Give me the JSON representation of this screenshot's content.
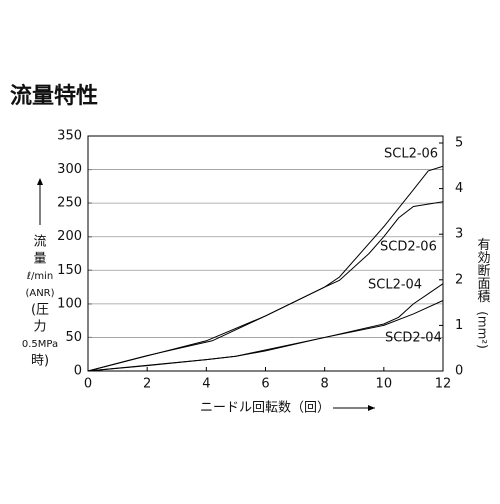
{
  "chart_data": {
    "type": "line",
    "title": "流量特性",
    "x_label": "ニードル回転数（回）",
    "y_label_lines": [
      "流",
      "量",
      "ℓ/min",
      "(ANR)",
      "(圧",
      "力",
      "0.5MPa",
      "時)"
    ],
    "y2_label": "有効断面積",
    "y2_unit": "(mm²)",
    "xlim": [
      0,
      12
    ],
    "xticks": [
      0,
      2,
      4,
      6,
      8,
      10,
      12
    ],
    "ylim": [
      0,
      350
    ],
    "yticks": [
      0,
      50,
      100,
      150,
      200,
      250,
      300,
      350
    ],
    "y2lim": [
      0,
      5
    ],
    "y2ticks": [
      0,
      1,
      2,
      3,
      4,
      5
    ],
    "grid": true,
    "series": [
      {
        "name": "SCL2-06",
        "color": "#000000",
        "x": [
          0,
          2,
          4.2,
          6,
          8,
          8.5,
          10,
          11,
          11.5,
          12
        ],
        "values": [
          0,
          23,
          45,
          82,
          125,
          140,
          215,
          270,
          298,
          305
        ]
      },
      {
        "name": "SCD2-06",
        "color": "#000000",
        "x": [
          0,
          4,
          6,
          8,
          8.5,
          9.5,
          10,
          10.5,
          11,
          12
        ],
        "values": [
          0,
          45,
          82,
          125,
          135,
          175,
          200,
          228,
          245,
          252
        ]
      },
      {
        "name": "SCL2-04",
        "color": "#000000",
        "x": [
          0,
          2,
          4,
          5,
          6,
          8,
          10,
          10.5,
          11,
          11.5,
          12
        ],
        "values": [
          0,
          8,
          17,
          22,
          30,
          50,
          70,
          80,
          100,
          115,
          130
        ]
      },
      {
        "name": "SCD2-04",
        "color": "#000000",
        "x": [
          0,
          4,
          5,
          8,
          10,
          11,
          12
        ],
        "values": [
          0,
          17,
          22,
          50,
          68,
          85,
          105
        ]
      }
    ]
  }
}
